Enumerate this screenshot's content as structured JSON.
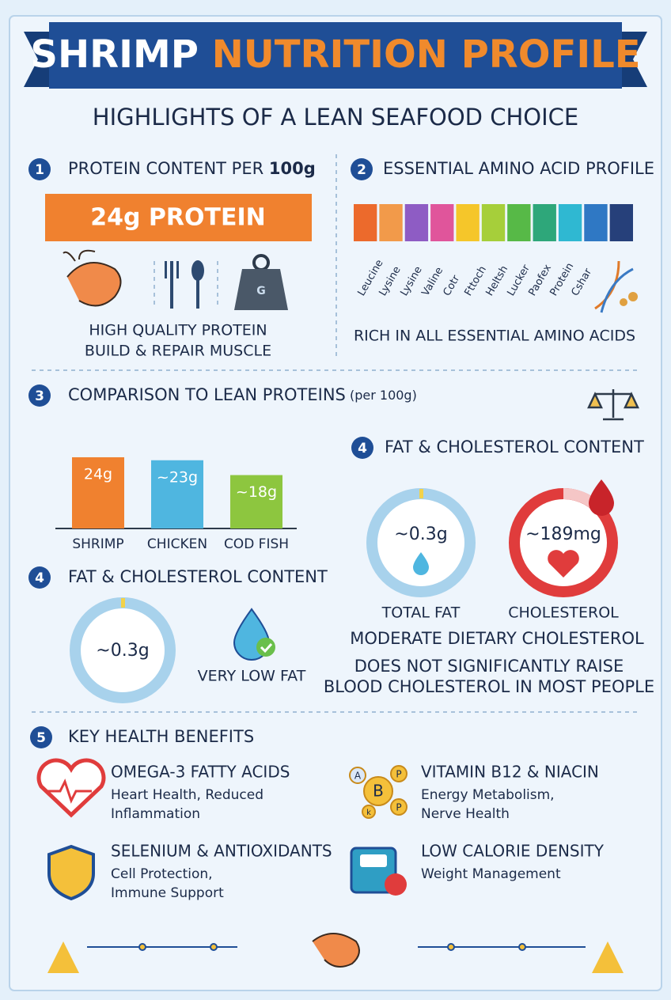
{
  "header": {
    "title_part1": "SHRIMP",
    "title_part2": "NUTRITION PROFILE",
    "subtitle": "HIGHLIGHTS OF A LEAN SEAFOOD CHOICE"
  },
  "protein": {
    "number": "1",
    "title": "PROTEIN CONTENT PER ",
    "title_bold": "100g",
    "banner": "24g PROTEIN",
    "weight_icon": "G",
    "captions": [
      "HIGH QUALITY PROTEIN",
      "BUILD & REPAIR MUSCLE"
    ]
  },
  "amino": {
    "number": "2",
    "title": "ESSENTIAL AMINO ACID PROFILE",
    "colors": [
      "#ec6a2c",
      "#f29a4a",
      "#8e5cc4",
      "#e0559b",
      "#f5c62a",
      "#a6cf3a",
      "#57b947",
      "#2ea77a",
      "#2fb8d2",
      "#2f78c4",
      "#26407a"
    ],
    "labels": [
      "Leucine",
      "Lysine",
      "Lysine",
      "Valine",
      "Cotr",
      "Fttoch",
      "Heltsh",
      "Lucker",
      "Paofex",
      "Protein",
      "Cshar"
    ],
    "caption": "RICH IN ALL ESSENTIAL AMINO ACIDS"
  },
  "comparison": {
    "number": "3",
    "title": "COMPARISON TO LEAN PROTEINS",
    "title_note": " (per 100g)",
    "items": [
      {
        "name": "SHRIMP",
        "label": "24g",
        "value": 24,
        "color": "#f0812f"
      },
      {
        "name": "CHICKEN",
        "label": "~23g",
        "value": 23,
        "color": "#4fb6e0"
      },
      {
        "name": "COD FISH",
        "label": "~18g",
        "value": 18,
        "color": "#8dc63f"
      }
    ]
  },
  "fat_left": {
    "number": "4",
    "title": "FAT & CHOLESTEROL CONTENT",
    "value": "~0.3g",
    "caption": "VERY LOW FAT"
  },
  "fat_right": {
    "number": "4",
    "title": "FAT & CHOLESTEROL CONTENT",
    "fat": "~0.3g",
    "fat_label": "TOTAL FAT",
    "cholesterol": "~189mg",
    "cholesterol_label": "CHOLESTEROL",
    "captions": [
      "MODERATE DIETARY CHOLESTEROL",
      "DOES NOT SIGNIFICANTLY RAISE",
      "BLOOD CHOLESTEROL IN MOST PEOPLE"
    ]
  },
  "benefits": {
    "number": "5",
    "title": "KEY HEALTH BENEFITS",
    "vitamin_icon": [
      "A",
      "B",
      "P",
      "P",
      "k"
    ],
    "items": [
      {
        "title": "OMEGA-3 FATTY ACIDS",
        "lines": [
          "Heart Health, Reduced",
          "Inflammation"
        ]
      },
      {
        "title": "VITAMIN B12 & NIACIN",
        "lines": [
          "Energy Metabolism,",
          "Nerve Health"
        ]
      },
      {
        "title": "SELENIUM & ANTIOXIDANTS",
        "lines": [
          "Cell Protection,",
          "Immune Support"
        ]
      },
      {
        "title": "LOW CALORIE DENSITY",
        "lines": [
          "Weight Management"
        ]
      }
    ]
  }
}
